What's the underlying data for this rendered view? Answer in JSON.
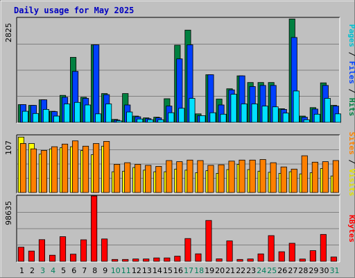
{
  "chart_data": {
    "type": "bar",
    "title": "Daily usage for May 2025",
    "categories": [
      "1",
      "2",
      "3",
      "4",
      "5",
      "6",
      "7",
      "8",
      "9",
      "10",
      "11",
      "12",
      "13",
      "14",
      "15",
      "16",
      "17",
      "18",
      "19",
      "20",
      "21",
      "22",
      "23",
      "24",
      "25",
      "26",
      "27",
      "28",
      "29",
      "30",
      "31"
    ],
    "weekend_days": [
      "3",
      "4",
      "10",
      "11",
      "17",
      "18",
      "24",
      "25",
      "31"
    ],
    "colors": {
      "background": "#c0c0c0",
      "hits": "#008040",
      "files": "#0040ff",
      "pages": "#00e0ff",
      "visits": "#ffff00",
      "sites": "#ff8000",
      "kbytes": "#ff0000",
      "title": "#0000c0",
      "weekday_tick": "#000000",
      "weekend_tick": "#00805c"
    },
    "panels": [
      {
        "name": "hits-files-pages",
        "ymax_label": "2825",
        "ymax": 2825,
        "label_parts": [
          {
            "text": "Pages",
            "color": "#00c0d0"
          },
          {
            "text": " / ",
            "color": "#000000"
          },
          {
            "text": "Files",
            "color": "#0040ff"
          },
          {
            "text": " / ",
            "color": "#000000"
          },
          {
            "text": "Hits",
            "color": "#008040"
          }
        ],
        "series": [
          {
            "key": "hits",
            "color": "#008040",
            "values": [
              480,
              460,
              610,
              300,
              730,
              1760,
              680,
              2100,
              780,
              80,
              780,
              170,
              120,
              140,
              640,
              2090,
              2500,
              230,
              1290,
              630,
              910,
              1260,
              1080,
              1080,
              1080,
              370,
              2800,
              170,
              400,
              1070,
              460
            ]
          },
          {
            "key": "files",
            "color": "#0040ff",
            "values": [
              480,
              460,
              610,
              290,
              680,
              1380,
              650,
              2100,
              750,
              60,
              470,
              150,
              100,
              120,
              440,
              1720,
              2100,
              180,
              1290,
              470,
              880,
              1260,
              970,
              1000,
              1000,
              350,
              2300,
              140,
              360,
              1000,
              440
            ]
          },
          {
            "key": "pages",
            "color": "#00e0ff",
            "values": [
              300,
              240,
              350,
              170,
              500,
              540,
              470,
              230,
              500,
              40,
              280,
              90,
              70,
              70,
              260,
              380,
              650,
              180,
              260,
              220,
              760,
              500,
              500,
              440,
              420,
              250,
              850,
              70,
              220,
              650,
              230
            ]
          }
        ]
      },
      {
        "name": "visits-sites",
        "ymax_label": "107",
        "ymax": 107,
        "label_parts": [
          {
            "text": "Sites",
            "color": "#ff8000"
          },
          {
            "text": " / ",
            "color": "#000000"
          },
          {
            "text": "Visits",
            "color": "#e0e000"
          }
        ],
        "series": [
          {
            "key": "visits",
            "color": "#ffff00",
            "values": [
              104,
              92,
              72,
              82,
              84,
              86,
              79,
              71,
              87,
              39,
              40,
              47,
              42,
              39,
              39,
              44,
              42,
              37,
              41,
              36,
              43,
              53,
              43,
              40,
              38,
              36,
              39,
              35,
              37,
              45,
              31
            ]
          },
          {
            "key": "sites",
            "color": "#ff8000",
            "values": [
              92,
              82,
              79,
              86,
              91,
              97,
              87,
              92,
              96,
              53,
              56,
              53,
              51,
              49,
              60,
              58,
              61,
              60,
              51,
              52,
              59,
              61,
              61,
              62,
              56,
              48,
              44,
              69,
              57,
              58,
              60
            ]
          }
        ]
      },
      {
        "name": "kbytes",
        "ymax_label": "98635",
        "ymax": 98635,
        "label_parts": [
          {
            "text": "KBytes",
            "color": "#ff0000"
          }
        ],
        "series": [
          {
            "key": "kbytes",
            "color": "#ff0000",
            "values": [
              21300,
              15500,
              32700,
              9200,
              37300,
              10800,
              32500,
              98600,
              33800,
              2800,
              2800,
              3600,
              3600,
              5100,
              5100,
              7800,
              34400,
              11300,
              61700,
              3800,
              30800,
              2800,
              3600,
              11200,
              38800,
              14500,
              27300,
              3500,
              16200,
              40600,
              6500
            ]
          }
        ]
      }
    ]
  }
}
